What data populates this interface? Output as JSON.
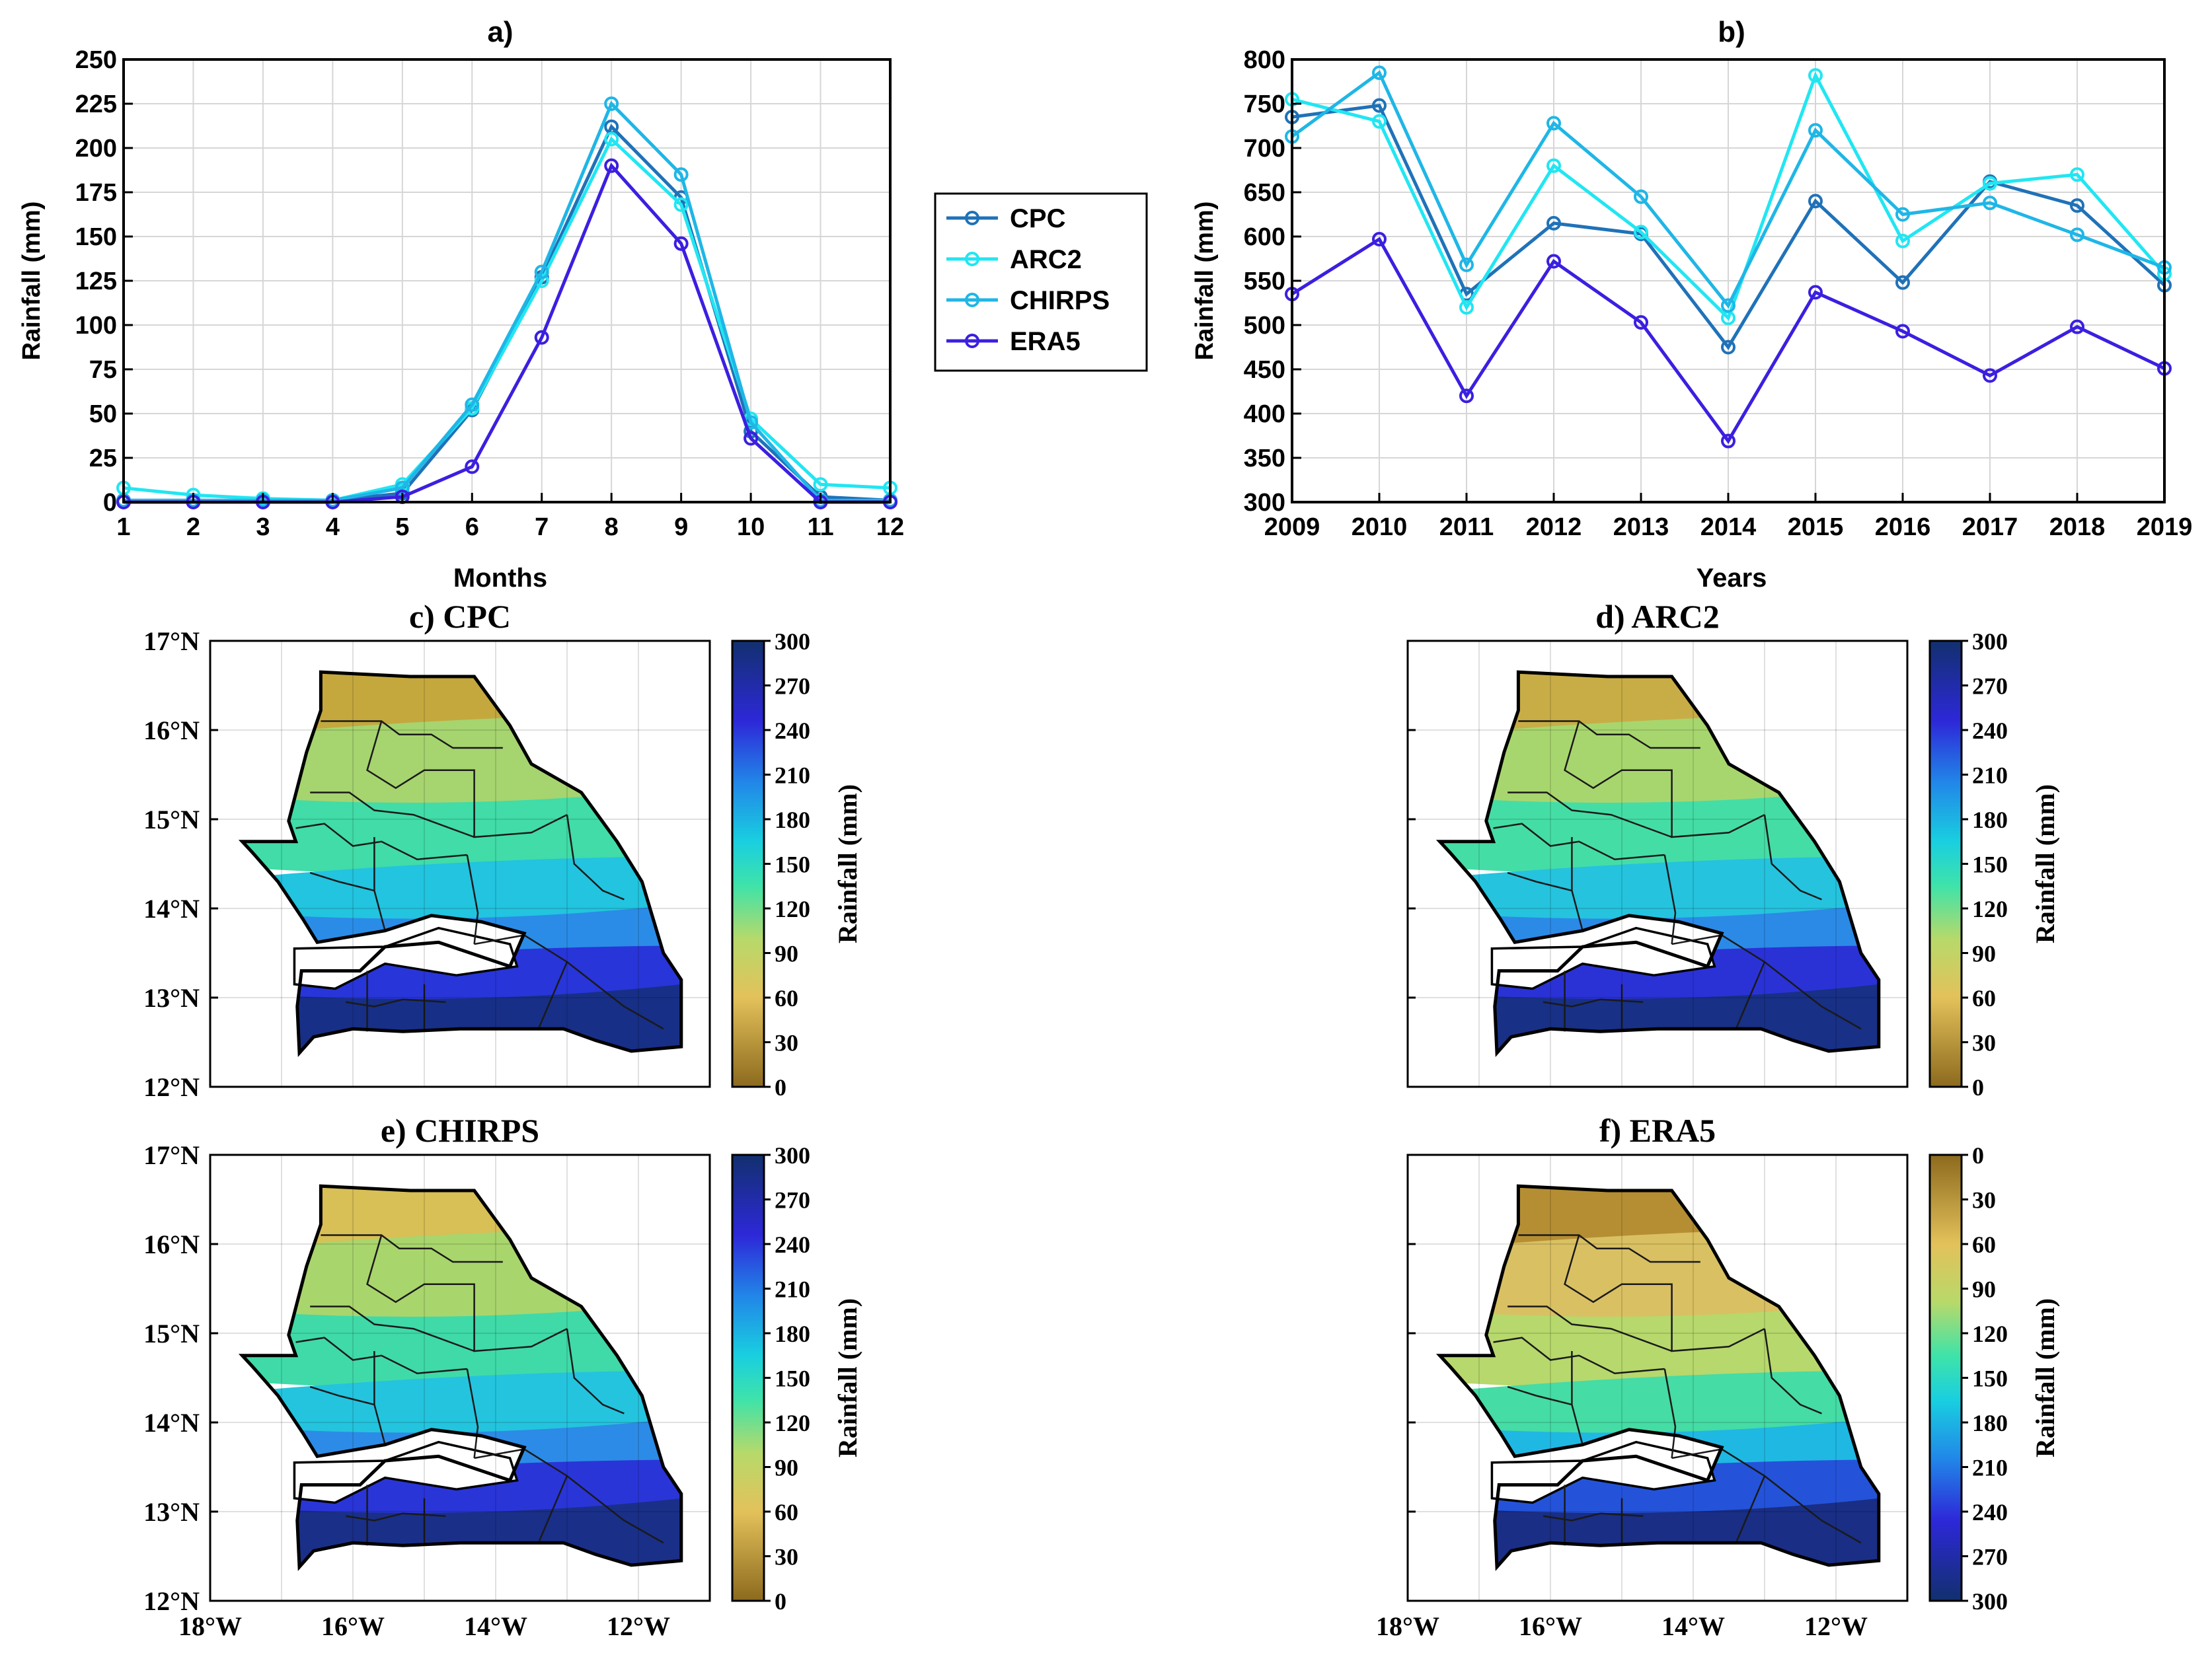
{
  "chart_data": [
    {
      "panel": "a",
      "type": "line",
      "title": "a)",
      "xlabel": "Months",
      "ylabel": "Rainfall (mm)",
      "x": [
        1,
        2,
        3,
        4,
        5,
        6,
        7,
        8,
        9,
        10,
        11,
        12
      ],
      "xlim": [
        1,
        12
      ],
      "ylim": [
        0,
        250
      ],
      "yticks": [
        0,
        25,
        50,
        75,
        100,
        125,
        150,
        175,
        200,
        225,
        250
      ],
      "grid": true,
      "series": [
        {
          "name": "CPC",
          "color": "#1f72b8",
          "values": [
            1,
            1,
            1,
            1,
            5,
            52,
            127,
            212,
            172,
            40,
            3,
            1
          ]
        },
        {
          "name": "ARC2",
          "color": "#21e6f2",
          "values": [
            8,
            4,
            2,
            1,
            10,
            53,
            125,
            205,
            168,
            47,
            10,
            8
          ]
        },
        {
          "name": "CHIRPS",
          "color": "#1fb6e6",
          "values": [
            1,
            1,
            1,
            1,
            8,
            55,
            130,
            225,
            185,
            45,
            1,
            1
          ]
        },
        {
          "name": "ERA5",
          "color": "#3b1fe0",
          "values": [
            0,
            0,
            0,
            0,
            3,
            20,
            93,
            190,
            146,
            36,
            0,
            0
          ]
        }
      ]
    },
    {
      "panel": "b",
      "type": "line",
      "title": "b)",
      "xlabel": "Years",
      "ylabel": "Rainfall (mm)",
      "x": [
        2009,
        2010,
        2011,
        2012,
        2013,
        2014,
        2015,
        2016,
        2017,
        2018,
        2019
      ],
      "xlim": [
        2009,
        2019
      ],
      "ylim": [
        300,
        800
      ],
      "yticks": [
        300,
        350,
        400,
        450,
        500,
        550,
        600,
        650,
        700,
        750,
        800
      ],
      "grid": true,
      "series": [
        {
          "name": "CPC",
          "color": "#1f72b8",
          "values": [
            735,
            748,
            535,
            615,
            603,
            475,
            640,
            548,
            662,
            635,
            545
          ]
        },
        {
          "name": "ARC2",
          "color": "#21e6f2",
          "values": [
            755,
            730,
            520,
            680,
            605,
            508,
            782,
            595,
            660,
            670,
            558
          ]
        },
        {
          "name": "CHIRPS",
          "color": "#1fb6e6",
          "values": [
            713,
            785,
            568,
            728,
            645,
            522,
            720,
            625,
            638,
            602,
            565
          ]
        },
        {
          "name": "ERA5",
          "color": "#3b1fe0",
          "values": [
            535,
            597,
            420,
            572,
            503,
            369,
            537,
            493,
            443,
            498,
            451
          ]
        }
      ]
    },
    {
      "panel": "c",
      "type": "heatmap",
      "title": "c) CPC",
      "colorbar_label": "Rainfall (mm)",
      "colorbar_ticks": [
        0,
        30,
        60,
        90,
        120,
        150,
        180,
        210,
        240,
        270,
        300
      ],
      "colorbar_reversed": false
    },
    {
      "panel": "d",
      "type": "heatmap",
      "title": "d) ARC2",
      "colorbar_label": "Rainfall (mm)",
      "colorbar_ticks": [
        0,
        30,
        60,
        90,
        120,
        150,
        180,
        210,
        240,
        270,
        300
      ],
      "colorbar_reversed": false
    },
    {
      "panel": "e",
      "type": "heatmap",
      "title": "e) CHIRPS",
      "colorbar_label": "Rainfall (mm)",
      "colorbar_ticks": [
        0,
        30,
        60,
        90,
        120,
        150,
        180,
        210,
        240,
        270,
        300
      ],
      "colorbar_reversed": false
    },
    {
      "panel": "f",
      "type": "heatmap",
      "title": "f) ERA5",
      "colorbar_label": "Rainfall (mm)",
      "colorbar_ticks": [
        0,
        30,
        60,
        90,
        120,
        150,
        180,
        210,
        240,
        270,
        300
      ],
      "colorbar_reversed": true
    }
  ],
  "map_axes": {
    "lat_ticks": [
      "12°N",
      "13°N",
      "14°N",
      "15°N",
      "16°N",
      "17°N"
    ],
    "lon_ticks": [
      "18°W",
      "16°W",
      "14°W",
      "12°W"
    ]
  },
  "legend": {
    "entries": [
      "CPC",
      "ARC2",
      "CHIRPS",
      "ERA5"
    ]
  }
}
